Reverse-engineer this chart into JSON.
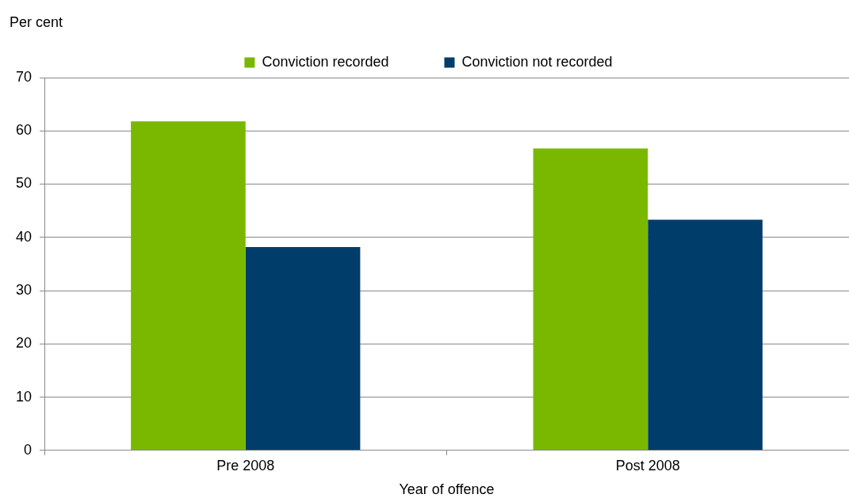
{
  "chart_data": {
    "type": "bar",
    "ylabel": "Per cent",
    "xlabel": "Year of offence",
    "categories": [
      "Pre 2008",
      "Post 2008"
    ],
    "series": [
      {
        "name": "Conviction recorded",
        "color": "#7ab800",
        "values": [
          61.8,
          56.7
        ]
      },
      {
        "name": "Conviction not recorded",
        "color": "#003d6b",
        "values": [
          38.2,
          43.3
        ]
      }
    ],
    "ylim": [
      0,
      70
    ],
    "yticks": [
      0,
      10,
      20,
      30,
      40,
      50,
      60,
      70
    ],
    "grid": "y",
    "legend": "top"
  }
}
